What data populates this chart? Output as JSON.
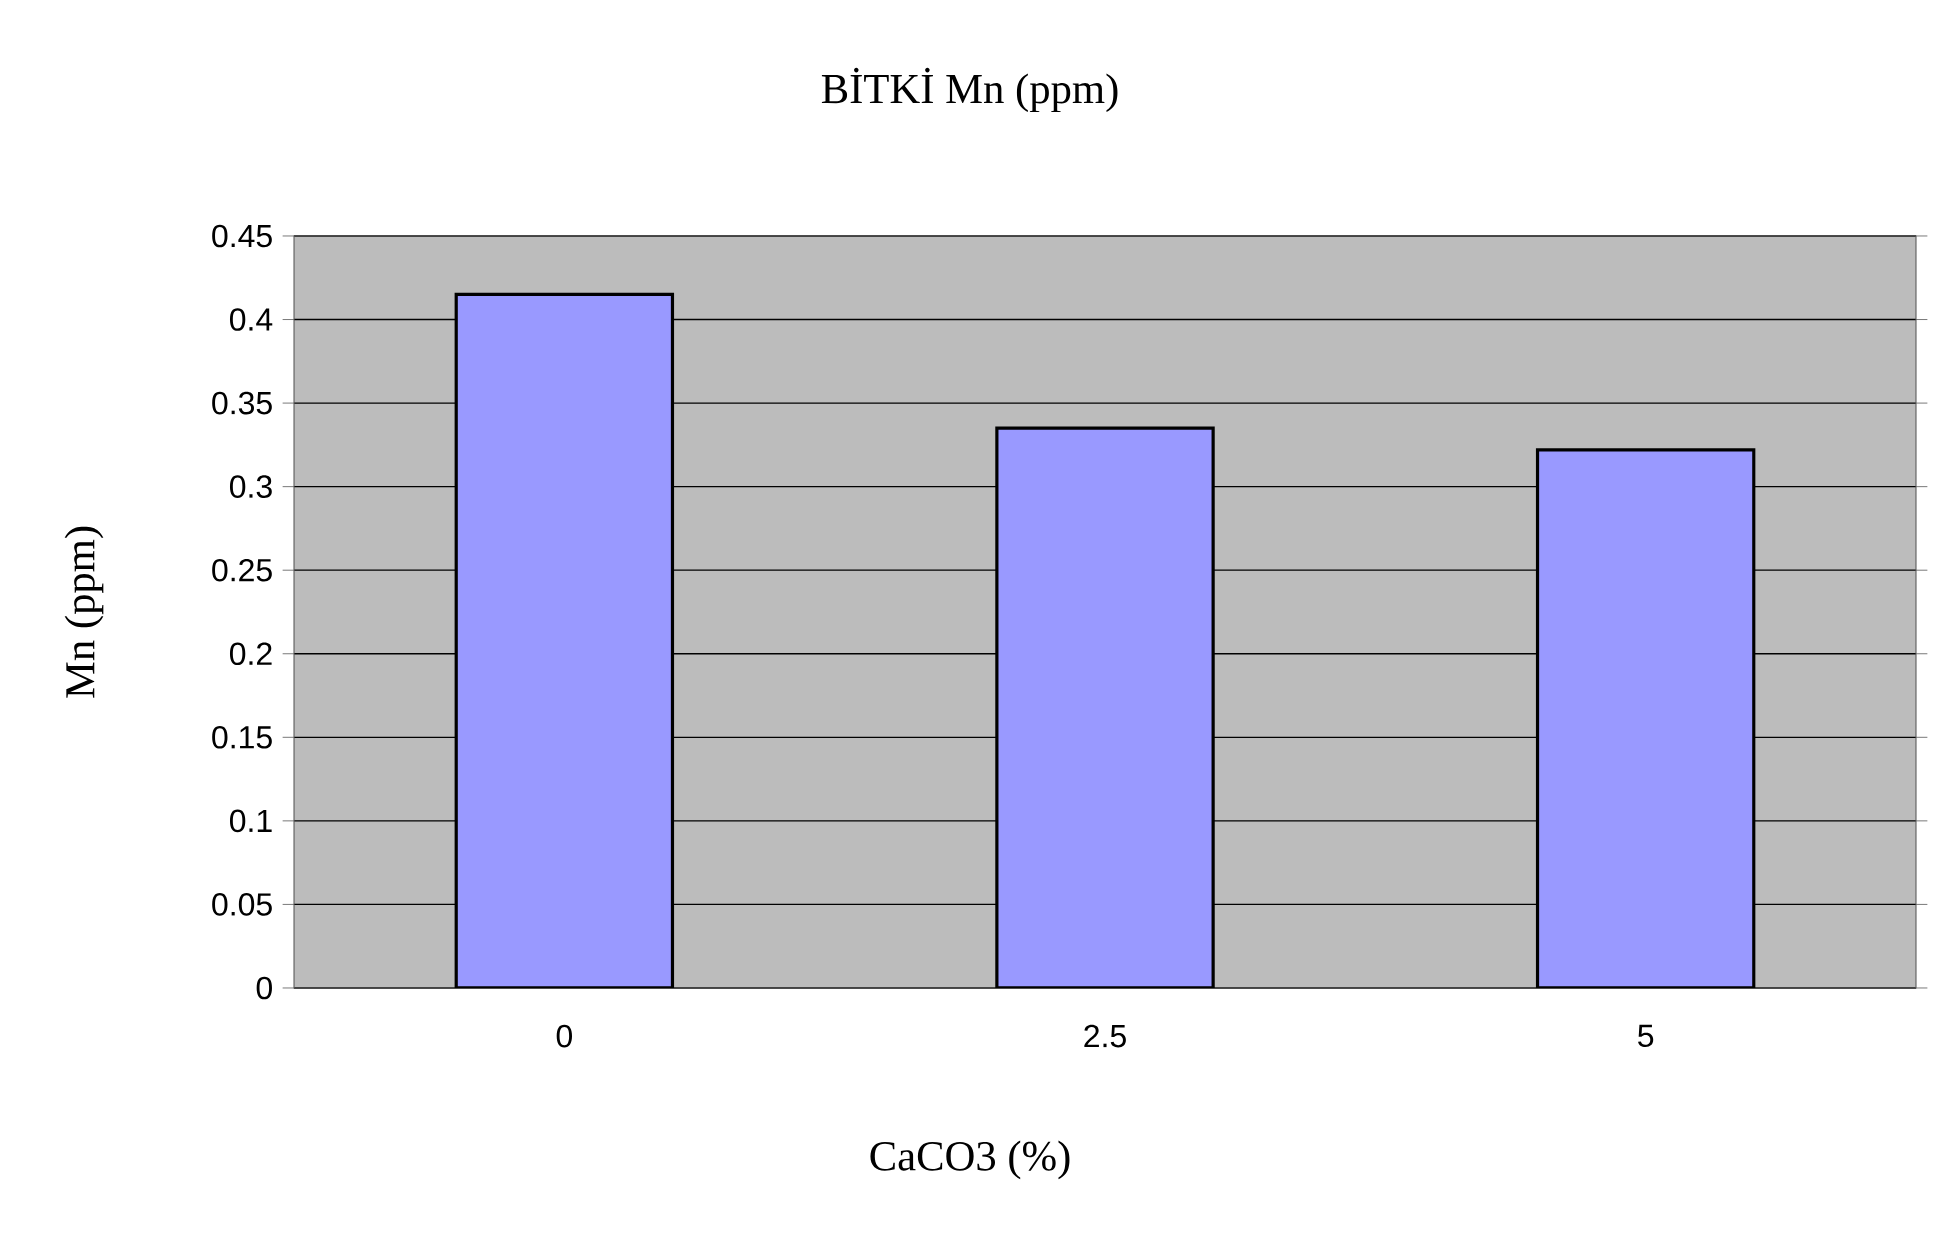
{
  "chart_data": {
    "type": "bar",
    "title": "BİTKİ Mn (ppm)",
    "xlabel": "CaCO3 (%)",
    "ylabel": "Mn (ppm)",
    "categories": [
      "0",
      "2.5",
      "5"
    ],
    "values": [
      0.415,
      0.335,
      0.322
    ],
    "color": "#9999ff",
    "ylim": [
      0,
      0.45
    ],
    "yticks": [
      0,
      0.05,
      0.1,
      0.15,
      0.2,
      0.25,
      0.3,
      0.35,
      0.4,
      0.45
    ],
    "grid": "y"
  }
}
